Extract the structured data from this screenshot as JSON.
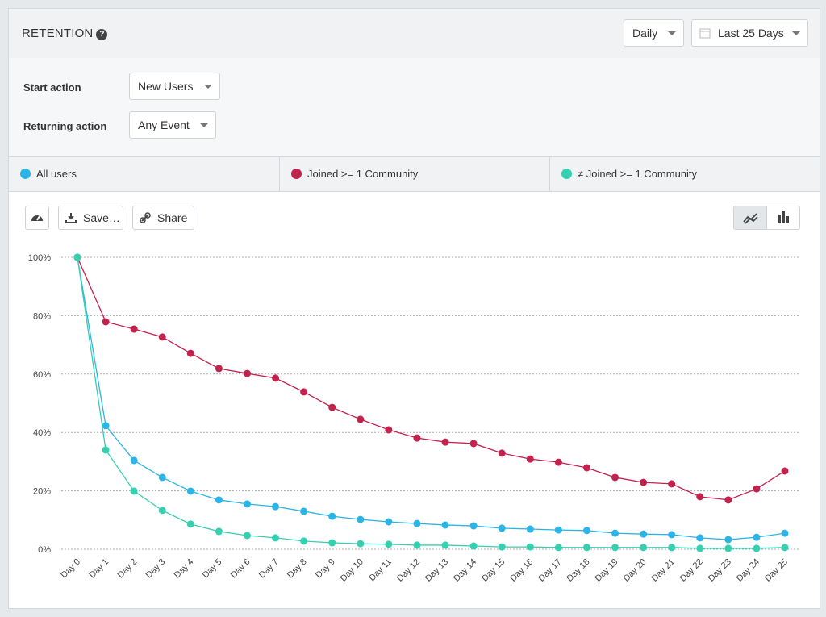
{
  "header": {
    "title": "RETENTION",
    "interval": "Daily",
    "range": "Last 25 Days"
  },
  "filters": [
    {
      "label": "Start action",
      "value": "New Users"
    },
    {
      "label": "Returning action",
      "value": "Any Event"
    }
  ],
  "toolbar": {
    "save": "Save…",
    "share": "Share"
  },
  "chart_data": {
    "type": "line",
    "categories": [
      "Day 0",
      "Day 1",
      "Day 2",
      "Day 3",
      "Day 4",
      "Day 5",
      "Day 6",
      "Day 7",
      "Day 8",
      "Day 9",
      "Day 10",
      "Day 11",
      "Day 12",
      "Day 13",
      "Day 14",
      "Day 15",
      "Day 16",
      "Day 17",
      "Day 18",
      "Day 19",
      "Day 20",
      "Day 21",
      "Day 22",
      "Day 23",
      "Day 24",
      "Day 25"
    ],
    "series": [
      {
        "name": "All users",
        "color": "#2cb4e6",
        "values": [
          100,
          42.3,
          30.4,
          24.6,
          19.9,
          16.9,
          15.5,
          14.6,
          13.0,
          11.3,
          10.2,
          9.4,
          8.8,
          8.3,
          8.0,
          7.2,
          6.9,
          6.6,
          6.4,
          5.5,
          5.2,
          5.0,
          3.9,
          3.3,
          4.1,
          5.5
        ]
      },
      {
        "name": "Joined >= 1 Community",
        "color": "#c2224e",
        "values": [
          100,
          77.9,
          75.4,
          72.7,
          67.1,
          61.9,
          60.2,
          58.6,
          53.9,
          48.6,
          44.5,
          40.9,
          38.1,
          36.7,
          36.2,
          32.9,
          30.9,
          29.8,
          27.9,
          24.6,
          22.9,
          22.4,
          18.0,
          16.9,
          20.7,
          26.8
        ]
      },
      {
        "name": "≠ Joined >= 1 Community",
        "color": "#35d0b0",
        "values": [
          100,
          34.0,
          19.9,
          13.3,
          8.6,
          6.1,
          4.7,
          3.9,
          2.8,
          2.2,
          1.9,
          1.7,
          1.4,
          1.4,
          1.1,
          0.8,
          0.8,
          0.6,
          0.6,
          0.6,
          0.6,
          0.6,
          0.3,
          0.3,
          0.3,
          0.6
        ]
      }
    ],
    "ylim": [
      0,
      100
    ],
    "yticks": [
      {
        "value": 0,
        "label": "0%"
      },
      {
        "value": 20,
        "label": "20%"
      },
      {
        "value": 40,
        "label": "40%"
      },
      {
        "value": 60,
        "label": "60%"
      },
      {
        "value": 80,
        "label": "80%"
      },
      {
        "value": 100,
        "label": "100%"
      }
    ],
    "grid": true
  }
}
